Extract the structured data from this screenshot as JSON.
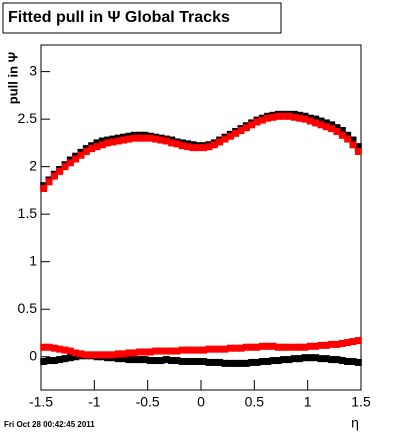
{
  "chart_data": {
    "type": "scatter",
    "title": "Fitted pull in  Ψ   Global Tracks",
    "y_label": "pull in Ψ",
    "x_label": "η",
    "footer": "Fri Oct 28 00:42:45 2011",
    "x": [
      -1.475,
      -1.425,
      -1.375,
      -1.325,
      -1.275,
      -1.225,
      -1.175,
      -1.125,
      -1.075,
      -1.025,
      -0.975,
      -0.925,
      -0.875,
      -0.825,
      -0.775,
      -0.725,
      -0.675,
      -0.625,
      -0.575,
      -0.525,
      -0.475,
      -0.425,
      -0.375,
      -0.325,
      -0.275,
      -0.225,
      -0.175,
      -0.125,
      -0.075,
      -0.025,
      0.025,
      0.075,
      0.125,
      0.175,
      0.225,
      0.275,
      0.325,
      0.375,
      0.425,
      0.475,
      0.525,
      0.575,
      0.625,
      0.675,
      0.725,
      0.775,
      0.825,
      0.875,
      0.925,
      0.975,
      1.025,
      1.075,
      1.125,
      1.175,
      1.225,
      1.275,
      1.325,
      1.375,
      1.425,
      1.475
    ],
    "series": [
      {
        "color": "#000000",
        "values": [
          1.8,
          1.86,
          1.92,
          1.97,
          2.02,
          2.07,
          2.11,
          2.15,
          2.19,
          2.22,
          2.25,
          2.27,
          2.28,
          2.29,
          2.3,
          2.31,
          2.32,
          2.33,
          2.33,
          2.33,
          2.32,
          2.31,
          2.3,
          2.29,
          2.28,
          2.26,
          2.25,
          2.24,
          2.23,
          2.22,
          2.22,
          2.23,
          2.25,
          2.28,
          2.31,
          2.34,
          2.37,
          2.4,
          2.43,
          2.46,
          2.49,
          2.51,
          2.53,
          2.54,
          2.55,
          2.55,
          2.55,
          2.55,
          2.54,
          2.53,
          2.51,
          2.5,
          2.48,
          2.46,
          2.44,
          2.41,
          2.38,
          2.33,
          2.28,
          2.21
        ]
      },
      {
        "color": "#ff0000",
        "values": [
          1.77,
          1.84,
          1.9,
          1.95,
          2.0,
          2.04,
          2.08,
          2.12,
          2.16,
          2.19,
          2.21,
          2.23,
          2.25,
          2.26,
          2.27,
          2.28,
          2.29,
          2.3,
          2.3,
          2.3,
          2.3,
          2.29,
          2.28,
          2.27,
          2.25,
          2.24,
          2.22,
          2.21,
          2.2,
          2.2,
          2.2,
          2.21,
          2.23,
          2.26,
          2.29,
          2.32,
          2.35,
          2.38,
          2.41,
          2.44,
          2.47,
          2.49,
          2.51,
          2.52,
          2.53,
          2.53,
          2.53,
          2.52,
          2.51,
          2.5,
          2.48,
          2.46,
          2.44,
          2.42,
          2.4,
          2.37,
          2.33,
          2.29,
          2.23,
          2.16
        ]
      },
      {
        "color": "#000000",
        "values": [
          -0.05,
          -0.04,
          -0.04,
          -0.03,
          -0.02,
          -0.01,
          0.0,
          0.01,
          0.01,
          0.01,
          0.0,
          0.0,
          -0.01,
          -0.01,
          -0.02,
          -0.02,
          -0.03,
          -0.03,
          -0.03,
          -0.03,
          -0.04,
          -0.04,
          -0.04,
          -0.03,
          -0.04,
          -0.04,
          -0.05,
          -0.05,
          -0.05,
          -0.05,
          -0.05,
          -0.06,
          -0.06,
          -0.06,
          -0.07,
          -0.07,
          -0.07,
          -0.07,
          -0.07,
          -0.06,
          -0.06,
          -0.05,
          -0.05,
          -0.04,
          -0.04,
          -0.03,
          -0.03,
          -0.02,
          -0.02,
          -0.01,
          -0.01,
          -0.01,
          -0.02,
          -0.02,
          -0.03,
          -0.03,
          -0.04,
          -0.05,
          -0.05,
          -0.06
        ]
      },
      {
        "color": "#ff0000",
        "values": [
          0.1,
          0.1,
          0.09,
          0.08,
          0.07,
          0.06,
          0.04,
          0.03,
          0.02,
          0.02,
          0.02,
          0.02,
          0.02,
          0.02,
          0.03,
          0.03,
          0.04,
          0.04,
          0.05,
          0.05,
          0.05,
          0.06,
          0.06,
          0.06,
          0.06,
          0.06,
          0.07,
          0.07,
          0.07,
          0.07,
          0.07,
          0.08,
          0.08,
          0.08,
          0.08,
          0.09,
          0.09,
          0.09,
          0.1,
          0.1,
          0.1,
          0.11,
          0.11,
          0.11,
          0.1,
          0.1,
          0.1,
          0.1,
          0.1,
          0.1,
          0.11,
          0.11,
          0.12,
          0.12,
          0.13,
          0.13,
          0.14,
          0.15,
          0.16,
          0.17
        ]
      }
    ],
    "xlim": [
      -1.5,
      1.5
    ],
    "xticks": [
      -1.5,
      -1,
      -0.5,
      0,
      0.5,
      1,
      1.5
    ],
    "ylim": [
      -0.35,
      3.28
    ],
    "yticks": [
      0,
      0.5,
      1,
      1.5,
      2,
      2.5,
      3
    ]
  }
}
